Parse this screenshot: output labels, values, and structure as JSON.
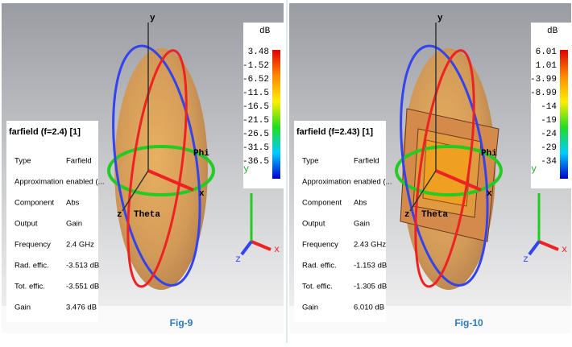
{
  "panels": [
    {
      "legend": {
        "title": "farfield (f=2.4) [1]",
        "rows": [
          [
            "Type",
            "Farfield"
          ],
          [
            "Approximation",
            "enabled (..."
          ],
          [
            "Component",
            "Abs"
          ],
          [
            "Output",
            "Gain"
          ],
          [
            "Frequency",
            "2.4 GHz"
          ],
          [
            "Rad. effic.",
            "-3.513 dB"
          ],
          [
            "Tot. effic.",
            "-3.551 dB"
          ],
          [
            "Gain",
            "3.476 dB"
          ]
        ]
      },
      "colorbar": {
        "unit": "dB",
        "labels": [
          "3.48",
          "-1.52",
          "-6.52",
          "-11.5",
          "-16.5",
          "-21.5",
          "-26.5",
          "-31.5",
          "-36.5"
        ]
      },
      "axes": {
        "y": "y",
        "x": "x",
        "z": "z",
        "phi": "Phi",
        "theta": "Theta"
      },
      "triad": {
        "y": "y",
        "x": "x",
        "z": "z"
      },
      "caption": "Fig-9"
    },
    {
      "legend": {
        "title": "farfield (f=2.43) [1]",
        "rows": [
          [
            "Type",
            "Farfield"
          ],
          [
            "Approximation",
            "enabled (..."
          ],
          [
            "Component",
            "Abs"
          ],
          [
            "Output",
            "Gain"
          ],
          [
            "Frequency",
            "2.43 GHz"
          ],
          [
            "Rad. effic.",
            "-1.153 dB"
          ],
          [
            "Tot. effic.",
            "-1.305 dB"
          ],
          [
            "Gain",
            "6.010 dB"
          ]
        ]
      },
      "colorbar": {
        "unit": "dB",
        "labels": [
          "6.01",
          "1.01",
          "-3.99",
          "-8.99",
          "-14",
          "-19",
          "-24",
          "-29",
          "-34"
        ]
      },
      "axes": {
        "y": "y",
        "x": "x",
        "z": "z",
        "phi": "Phi",
        "theta": "Theta"
      },
      "triad": {
        "y": "y",
        "x": "x",
        "z": "z"
      },
      "caption": "Fig-10"
    }
  ]
}
